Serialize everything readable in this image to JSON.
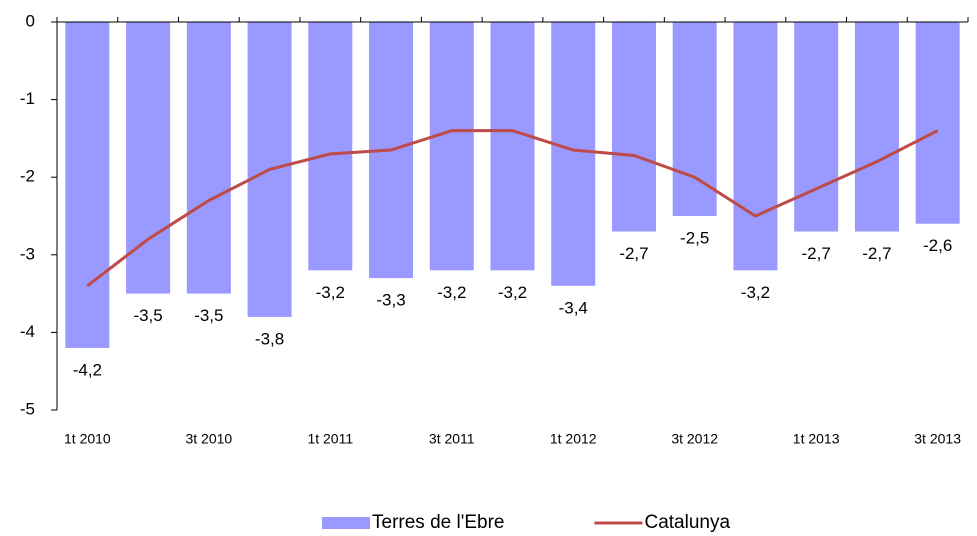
{
  "chart_data": {
    "type": "bar",
    "categories": [
      "1t 2010",
      null,
      "3t 2010",
      null,
      "1t 2011",
      null,
      "3t 2011",
      null,
      "1t 2012",
      null,
      "3t 2012",
      null,
      "1t 2013",
      null,
      "3t 2013"
    ],
    "series": [
      {
        "name": "Terres de l'Ebre",
        "type": "bar",
        "color": "#9999ff",
        "values": [
          -4.2,
          -3.5,
          -3.5,
          -3.8,
          -3.2,
          -3.3,
          -3.2,
          -3.2,
          -3.4,
          -2.7,
          -2.5,
          -3.2,
          -2.7,
          -2.7,
          -2.6
        ],
        "value_labels": [
          "-4,2",
          "-3,5",
          "-3,5",
          "-3,8",
          "-3,2",
          "-3,3",
          "-3,2",
          "-3,2",
          "-3,4",
          "-2,7",
          "-2,5",
          "-3,2",
          "-2,7",
          "-2,7",
          "-2,6"
        ]
      },
      {
        "name": "Catalunya",
        "type": "line",
        "color": "#be4b48",
        "values": [
          -3.4,
          -2.8,
          -2.3,
          -1.9,
          -1.7,
          -1.65,
          -1.4,
          -1.4,
          -1.65,
          -1.72,
          -2.0,
          -2.5,
          -2.15,
          -1.8,
          -1.4
        ]
      }
    ],
    "ylim": [
      -5,
      0
    ],
    "yticks": [
      0,
      -1,
      -2,
      -3,
      -4,
      -5
    ],
    "grid": false,
    "legend": "bottom"
  }
}
